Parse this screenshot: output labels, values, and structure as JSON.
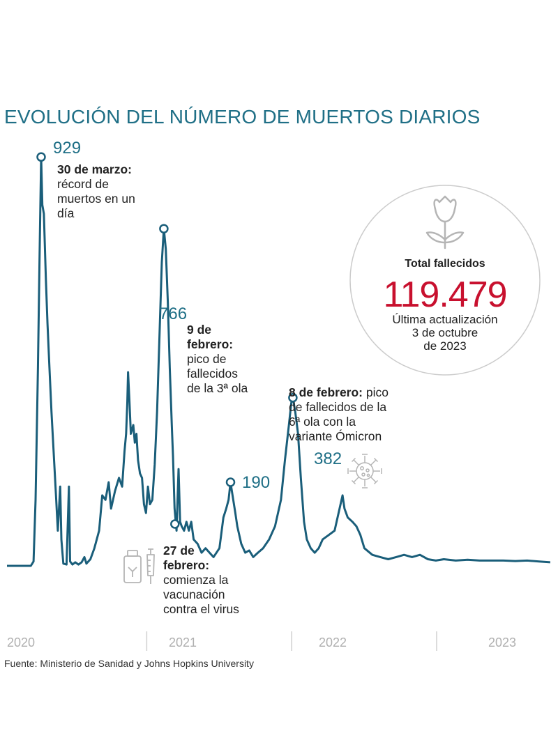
{
  "title": "EVOLUCIÓN DEL NÚMERO DE MUERTOS DIARIOS",
  "total_box": {
    "label": "Total fallecidos",
    "value": "119.479",
    "update_line1": "Última actualización",
    "update_line2": "3 de octubre",
    "update_line3": "de 2023"
  },
  "annotations": {
    "peak1": {
      "value": "929",
      "date": "30 de marzo:",
      "text1": "récord de",
      "text2": "muertos en un",
      "text3": "día"
    },
    "peak3": {
      "value": "766",
      "date1": "9 de",
      "date2": "febrero:",
      "text1": "pico de",
      "text2": "fallecidos",
      "text3": "de la 3ª ola"
    },
    "peak_mid": {
      "value": "190"
    },
    "peak6": {
      "value": "382",
      "date": "8 de febrero:",
      "text0": "pico",
      "text1": "de fallecidos de la",
      "text2": "6ª ola con la",
      "text3": "variante Ómicron"
    },
    "vaccine": {
      "date1": "27 de",
      "date2": "febrero:",
      "text1": "comienza la",
      "text2": "vacunación",
      "text3": "contra el virus"
    }
  },
  "source": "Fuente: Ministerio de Sanidad y Johns Hopkins University",
  "colors": {
    "line": "#1a5e7a",
    "title": "#1f6f86",
    "total": "#c8102e",
    "icon": "#b5b5b5"
  },
  "chart_data": {
    "type": "line",
    "title": "EVOLUCIÓN DEL NÚMERO DE MUERTOS DIARIOS",
    "xlabel": "",
    "ylabel": "",
    "x_tick_labels": [
      "2020",
      "2021",
      "2022",
      "2023"
    ],
    "x_unit": "days since 2020-01-01",
    "x_ticks": [
      0,
      366,
      731,
      1096
    ],
    "xlim": [
      0,
      1370
    ],
    "ylim": [
      0,
      950
    ],
    "series": [
      {
        "name": "Muertos diarios",
        "points": [
          [
            0,
            0
          ],
          [
            60,
            0
          ],
          [
            67,
            10
          ],
          [
            72,
            150
          ],
          [
            78,
            450
          ],
          [
            82,
            700
          ],
          [
            86,
            929
          ],
          [
            89,
            820
          ],
          [
            93,
            800
          ],
          [
            98,
            650
          ],
          [
            102,
            550
          ],
          [
            107,
            450
          ],
          [
            112,
            350
          ],
          [
            118,
            250
          ],
          [
            124,
            150
          ],
          [
            128,
            80
          ],
          [
            134,
            180
          ],
          [
            137,
            60
          ],
          [
            142,
            5
          ],
          [
            150,
            3
          ],
          [
            156,
            180
          ],
          [
            159,
            10
          ],
          [
            165,
            3
          ],
          [
            172,
            8
          ],
          [
            180,
            3
          ],
          [
            188,
            8
          ],
          [
            195,
            20
          ],
          [
            200,
            5
          ],
          [
            210,
            15
          ],
          [
            220,
            40
          ],
          [
            232,
            80
          ],
          [
            240,
            160
          ],
          [
            248,
            150
          ],
          [
            256,
            190
          ],
          [
            262,
            130
          ],
          [
            272,
            170
          ],
          [
            282,
            200
          ],
          [
            290,
            180
          ],
          [
            296,
            260
          ],
          [
            300,
            300
          ],
          [
            303,
            370
          ],
          [
            305,
            440
          ],
          [
            308,
            380
          ],
          [
            312,
            300
          ],
          [
            318,
            320
          ],
          [
            322,
            280
          ],
          [
            326,
            300
          ],
          [
            330,
            240
          ],
          [
            335,
            210
          ],
          [
            340,
            200
          ],
          [
            345,
            140
          ],
          [
            350,
            120
          ],
          [
            355,
            180
          ],
          [
            360,
            140
          ],
          [
            366,
            150
          ],
          [
            372,
            230
          ],
          [
            378,
            350
          ],
          [
            384,
            520
          ],
          [
            390,
            690
          ],
          [
            395,
            766
          ],
          [
            400,
            720
          ],
          [
            405,
            600
          ],
          [
            410,
            450
          ],
          [
            415,
            320
          ],
          [
            418,
            250
          ],
          [
            422,
            130
          ],
          [
            427,
            80
          ],
          [
            432,
            220
          ],
          [
            436,
            100
          ],
          [
            440,
            90
          ],
          [
            446,
            80
          ],
          [
            452,
            100
          ],
          [
            458,
            80
          ],
          [
            464,
            100
          ],
          [
            470,
            60
          ],
          [
            480,
            50
          ],
          [
            490,
            30
          ],
          [
            500,
            40
          ],
          [
            510,
            30
          ],
          [
            520,
            20
          ],
          [
            535,
            40
          ],
          [
            545,
            110
          ],
          [
            552,
            130
          ],
          [
            558,
            150
          ],
          [
            563,
            190
          ],
          [
            568,
            160
          ],
          [
            575,
            120
          ],
          [
            580,
            90
          ],
          [
            590,
            50
          ],
          [
            600,
            30
          ],
          [
            610,
            35
          ],
          [
            620,
            20
          ],
          [
            632,
            30
          ],
          [
            645,
            40
          ],
          [
            660,
            60
          ],
          [
            675,
            90
          ],
          [
            690,
            150
          ],
          [
            700,
            240
          ],
          [
            710,
            320
          ],
          [
            716,
            370
          ],
          [
            720,
            382
          ],
          [
            726,
            350
          ],
          [
            733,
            300
          ],
          [
            740,
            200
          ],
          [
            748,
            100
          ],
          [
            755,
            60
          ],
          [
            765,
            40
          ],
          [
            775,
            30
          ],
          [
            785,
            40
          ],
          [
            795,
            60
          ],
          [
            810,
            70
          ],
          [
            825,
            80
          ],
          [
            835,
            120
          ],
          [
            845,
            160
          ],
          [
            850,
            130
          ],
          [
            858,
            110
          ],
          [
            870,
            100
          ],
          [
            880,
            90
          ],
          [
            890,
            70
          ],
          [
            900,
            40
          ],
          [
            920,
            25
          ],
          [
            940,
            20
          ],
          [
            960,
            15
          ],
          [
            980,
            20
          ],
          [
            1000,
            25
          ],
          [
            1020,
            20
          ],
          [
            1040,
            25
          ],
          [
            1060,
            15
          ],
          [
            1080,
            12
          ],
          [
            1100,
            15
          ],
          [
            1130,
            12
          ],
          [
            1160,
            14
          ],
          [
            1190,
            12
          ],
          [
            1220,
            12
          ],
          [
            1250,
            12
          ],
          [
            1280,
            11
          ],
          [
            1310,
            12
          ],
          [
            1340,
            10
          ],
          [
            1368,
            8
          ]
        ]
      }
    ],
    "highlighted_points": [
      {
        "x": 86,
        "y": 929,
        "label": "929"
      },
      {
        "x": 395,
        "y": 766,
        "label": "766"
      },
      {
        "x": 563,
        "y": 190,
        "label": "190"
      },
      {
        "x": 720,
        "y": 382,
        "label": "382"
      },
      {
        "x": 423,
        "y": 95,
        "label": ""
      }
    ]
  }
}
